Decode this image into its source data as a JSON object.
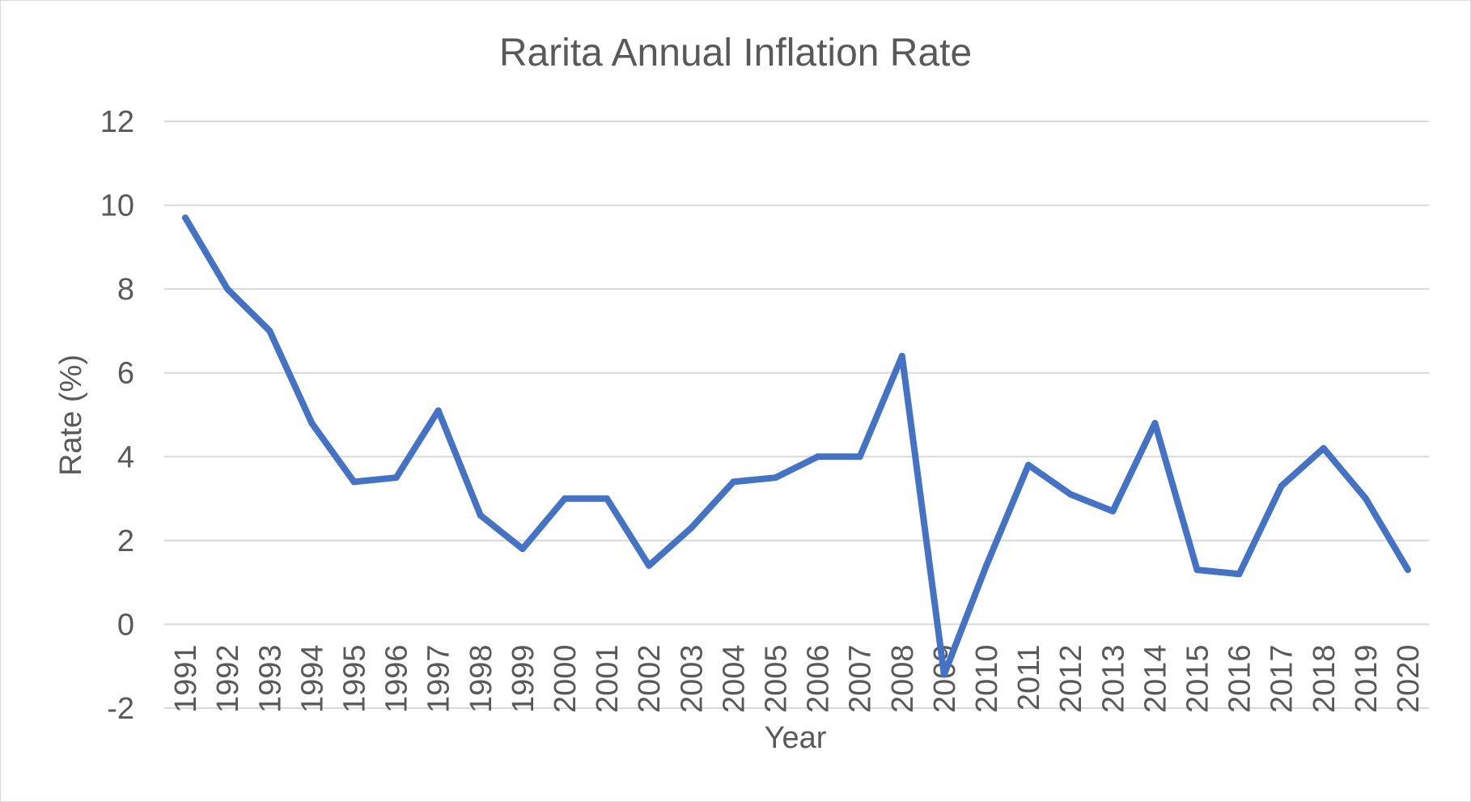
{
  "chart_data": {
    "type": "line",
    "title": "Rarita Annual Inflation Rate",
    "xlabel": "Year",
    "ylabel": "Rate (%)",
    "ylim": [
      -2,
      12
    ],
    "yticks": [
      -2,
      0,
      2,
      4,
      6,
      8,
      10,
      12
    ],
    "ytick_labels": [
      "-2",
      "0",
      "2",
      "4",
      "6",
      "8",
      "10",
      "12"
    ],
    "grid": true,
    "legend": "none",
    "categories": [
      "1991",
      "1992",
      "1993",
      "1994",
      "1995",
      "1996",
      "1997",
      "1998",
      "1999",
      "2000",
      "2001",
      "2002",
      "2003",
      "2004",
      "2005",
      "2006",
      "2007",
      "2008",
      "2009",
      "2010",
      "2011",
      "2012",
      "2013",
      "2014",
      "2015",
      "2016",
      "2017",
      "2018",
      "2019",
      "2020"
    ],
    "series": [
      {
        "color": "#4472c4",
        "values": [
          9.7,
          8.0,
          7.0,
          4.8,
          3.4,
          3.5,
          5.1,
          2.6,
          1.8,
          3.0,
          3.0,
          1.4,
          2.3,
          3.4,
          3.5,
          4.0,
          4.0,
          6.4,
          -1.2,
          1.4,
          3.8,
          3.1,
          2.7,
          4.8,
          1.3,
          1.2,
          3.3,
          4.2,
          3.0,
          1.3
        ]
      }
    ]
  }
}
